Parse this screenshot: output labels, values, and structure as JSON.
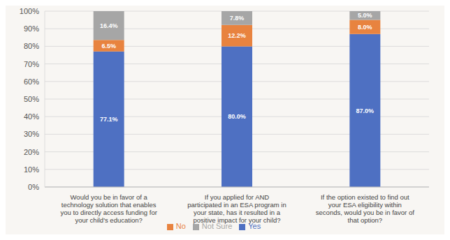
{
  "chart_data": {
    "type": "bar",
    "stacked": true,
    "data_labels": true,
    "grid": true,
    "legend": "bottom",
    "categories": [
      "Would you be in favor of a technology solution that enables you to directly access funding for your child's education?",
      "If you applied for AND participated in an ESA program in your state, has it resulted in a positive impact for your child?",
      "If the option existed to find out your ESA eligibility within seconds, would you be in favor of that option?"
    ],
    "series": [
      {
        "name": "Yes",
        "color": "#4e70c2",
        "values": [
          77.1,
          80.0,
          87.0
        ],
        "value_labels": [
          "77.1%",
          "80.0%",
          "87.0%"
        ]
      },
      {
        "name": "No",
        "color": "#e8833f",
        "values": [
          6.5,
          12.2,
          8.0
        ],
        "value_labels": [
          "6.5%",
          "12.2%",
          "8.0%"
        ]
      },
      {
        "name": "Not Sure",
        "color": "#a6a6a6",
        "values": [
          16.4,
          7.8,
          5.0
        ],
        "value_labels": [
          "16.4%",
          "7.8%",
          "5.0%"
        ]
      }
    ],
    "ylim": [
      0,
      100
    ],
    "yticks": [
      {
        "value": 0,
        "label": "0%"
      },
      {
        "value": 10,
        "label": "10%"
      },
      {
        "value": 20,
        "label": "20%"
      },
      {
        "value": 30,
        "label": "30%"
      },
      {
        "value": 40,
        "label": "40%"
      },
      {
        "value": 50,
        "label": "50%"
      },
      {
        "value": 60,
        "label": "60%"
      },
      {
        "value": 70,
        "label": "70%"
      },
      {
        "value": 80,
        "label": "80%"
      },
      {
        "value": 90,
        "label": "90%"
      },
      {
        "value": 100,
        "label": "100%"
      }
    ]
  }
}
